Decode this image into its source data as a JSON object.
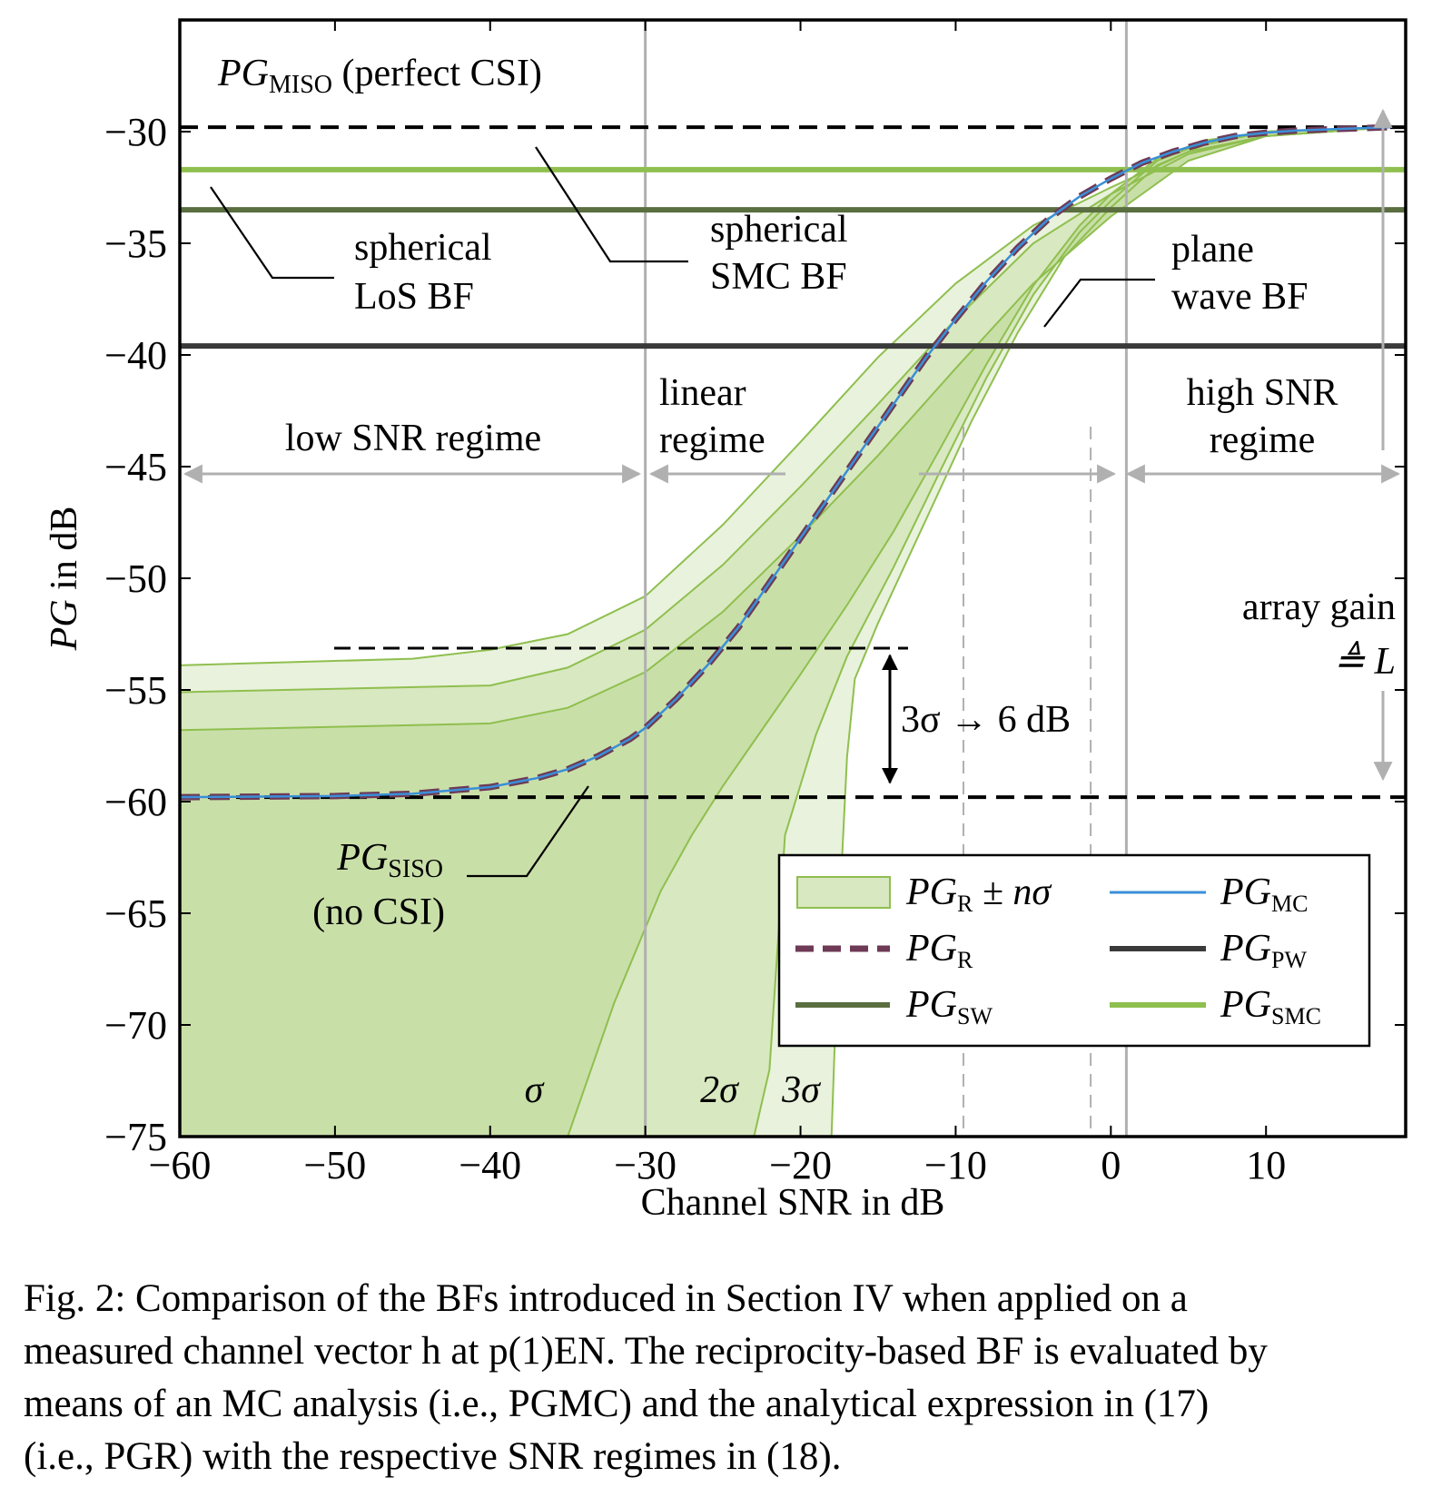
{
  "chart_data": {
    "type": "line",
    "xlabel": "Channel SNR in dB",
    "ylabel": "PG in dB",
    "xlim": [
      -60,
      19
    ],
    "ylim": [
      -75,
      -25
    ],
    "xticks": [
      -60,
      -50,
      -40,
      -30,
      -20,
      -10,
      0,
      10
    ],
    "xtick_labels": [
      "−60",
      "−50",
      "−40",
      "−30",
      "−20",
      "−10",
      "0",
      "10"
    ],
    "yticks": [
      -30,
      -35,
      -40,
      -45,
      -50,
      -55,
      -60,
      -65,
      -70,
      -75
    ],
    "ytick_labels": [
      "−30",
      "−35",
      "−40",
      "−45",
      "−50",
      "−55",
      "−60",
      "−65",
      "−70",
      "−75"
    ],
    "horizontal_lines": [
      {
        "name": "PG_MISO (perfect CSI)",
        "y": -29.8,
        "style": "dashed",
        "color": "#000000"
      },
      {
        "name": "PG_SMC",
        "y": -31.7,
        "style": "solid",
        "color": "#8fbf4f"
      },
      {
        "name": "PG_SW",
        "y": -33.5,
        "style": "solid",
        "color": "#5a6e40"
      },
      {
        "name": "PG_PW",
        "y": -39.6,
        "style": "solid",
        "color": "#3a3a3a"
      },
      {
        "name": "PG_SISO",
        "y": -59.8,
        "style": "dashed",
        "color": "#000000"
      }
    ],
    "regime_boundaries": [
      -30,
      1
    ],
    "dashed_verticals": [
      -9.5,
      -1.3
    ],
    "series": [
      {
        "name": "PG_R",
        "style": "dashed",
        "color": "#6e3a55",
        "x": [
          -60,
          -50,
          -45,
          -40,
          -37,
          -35,
          -33,
          -31,
          -30,
          -28,
          -26,
          -24,
          -22,
          -20,
          -18,
          -16,
          -14,
          -12,
          -10,
          -8,
          -6,
          -4,
          -2,
          0,
          2,
          4,
          6,
          8,
          10,
          12,
          14,
          16,
          18
        ],
        "y": [
          -59.8,
          -59.75,
          -59.65,
          -59.35,
          -58.95,
          -58.55,
          -57.95,
          -57.2,
          -56.7,
          -55.4,
          -53.9,
          -52.2,
          -50.2,
          -48.2,
          -46.2,
          -44.2,
          -42.2,
          -40.2,
          -38.4,
          -36.7,
          -35.2,
          -33.9,
          -32.9,
          -32.1,
          -31.4,
          -30.9,
          -30.5,
          -30.2,
          -30.05,
          -29.95,
          -29.9,
          -29.85,
          -29.8
        ]
      },
      {
        "name": "PG_MC",
        "style": "solid",
        "color": "#3a8fd8",
        "same_as": "PG_R"
      }
    ],
    "bands": [
      {
        "label": "σ",
        "n": 1,
        "upper_x": [
          -60,
          -40,
          -35,
          -30,
          -25,
          -20,
          -15,
          -10,
          -5,
          0,
          5,
          10,
          18
        ],
        "upper_y": [
          -56.8,
          -56.5,
          -55.8,
          -54.2,
          -51.5,
          -48.1,
          -44.5,
          -40.6,
          -36.8,
          -33.8,
          -31.3,
          -30.2,
          -29.8
        ],
        "lower_x": [
          -60,
          -40,
          -38,
          -35,
          -32,
          -29,
          -27,
          -25,
          -22,
          -20,
          -17,
          -14,
          -11,
          -8,
          -5,
          -2,
          0,
          3,
          6,
          10,
          18
        ],
        "lower_y": [
          -75,
          -75,
          -75,
          -75,
          -69,
          -64,
          -61.5,
          -59.3,
          -56.3,
          -54.3,
          -51.2,
          -47.9,
          -44.2,
          -40.4,
          -36.9,
          -34.2,
          -32.8,
          -31.2,
          -30.4,
          -30.0,
          -29.8
        ]
      },
      {
        "label": "2σ",
        "n": 2,
        "upper_x": [
          -60,
          -40,
          -35,
          -30,
          -25,
          -20,
          -15,
          -10,
          -5,
          0,
          5,
          10,
          18
        ],
        "upper_y": [
          -55.1,
          -54.8,
          -54.0,
          -52.3,
          -49.4,
          -45.9,
          -42.2,
          -38.4,
          -35.0,
          -32.8,
          -31.0,
          -30.2,
          -29.8
        ],
        "lower_x": [
          -60,
          -25,
          -23,
          -22,
          -21,
          -19,
          -17,
          -14,
          -11,
          -8,
          -5,
          -2,
          0,
          3,
          6,
          10,
          18
        ],
        "lower_y": [
          -75,
          -75,
          -75,
          -72,
          -61.5,
          -57,
          -53.5,
          -49.5,
          -45.2,
          -41.0,
          -37.3,
          -34.5,
          -33.1,
          -31.3,
          -30.5,
          -30.0,
          -29.8
        ]
      },
      {
        "label": "3σ",
        "n": 3,
        "upper_x": [
          -60,
          -45,
          -40,
          -35,
          -30,
          -25,
          -20,
          -15,
          -10,
          -5,
          0,
          5,
          10,
          18
        ],
        "upper_y": [
          -53.9,
          -53.6,
          -53.2,
          -52.5,
          -50.8,
          -47.6,
          -43.9,
          -40.1,
          -36.8,
          -34.2,
          -32.5,
          -30.9,
          -30.2,
          -29.8
        ],
        "lower_x": [
          -60,
          -19,
          -18,
          -17.5,
          -17,
          -16.5,
          -15,
          -12,
          -9,
          -6,
          -3,
          0,
          3,
          6,
          10,
          18
        ],
        "lower_y": [
          -75,
          -75,
          -75,
          -65,
          -58,
          -54.5,
          -52.0,
          -47.5,
          -43.0,
          -39.0,
          -35.6,
          -33.4,
          -31.5,
          -30.6,
          -30.0,
          -29.8
        ]
      }
    ],
    "band_colors": [
      "#c9dfa8",
      "#d8e8c0",
      "#e9f2dc"
    ],
    "band_edge_color": "#8fbf4f",
    "legend": {
      "placement": "lower-right",
      "entries": [
        {
          "label_main": "PG",
          "label_sub": "R",
          "label_suffix": " ± nσ",
          "kind": "band",
          "color": "#d8e8c0",
          "edge": "#8fbf4f"
        },
        {
          "label_main": "PG",
          "label_sub": "MC",
          "kind": "line",
          "color": "#3a8fd8",
          "style": "solid"
        },
        {
          "label_main": "PG",
          "label_sub": "R",
          "kind": "line",
          "color": "#6e3a55",
          "style": "dashed"
        },
        {
          "label_main": "PG",
          "label_sub": "PW",
          "kind": "line",
          "color": "#3a3a3a",
          "style": "solid"
        },
        {
          "label_main": "PG",
          "label_sub": "SW",
          "kind": "line",
          "color": "#5a6e40",
          "style": "solid"
        },
        {
          "label_main": "PG",
          "label_sub": "SMC",
          "kind": "line",
          "color": "#8fbf4f",
          "style": "solid"
        }
      ]
    },
    "annotations": {
      "miso_main": "PG",
      "miso_sub": "MISO",
      "miso_suffix": " (perfect CSI)",
      "los_line1": "spherical",
      "los_line2": "LoS BF",
      "smc_line1": "spherical",
      "smc_line2": "SMC BF",
      "pw_line1": "plane",
      "pw_line2": "wave BF",
      "low_regime": "low SNR regime",
      "linear_line1": "linear",
      "linear_line2": "regime",
      "high_line1": "high SNR",
      "high_line2": "regime",
      "array_gain_line1": "array gain",
      "array_gain_line2": "≜ L",
      "three_sigma": "3σ → 6 dB",
      "siso_main": "PG",
      "siso_sub": "SISO",
      "siso_line2": "(no CSI)",
      "sigma1": "σ",
      "sigma2": "2σ",
      "sigma3": "3σ"
    }
  },
  "caption": {
    "line1": "Fig. 2: Comparison of the BFs introduced in Section IV when applied on a",
    "line2": "measured channel vector h at p(1)EN. The reciprocity-based BF is evaluated by",
    "line3": "means of an MC analysis (i.e., PGMC) and the analytical expression in (17)",
    "line4": "(i.e., PGR) with the respective SNR regimes in (18)."
  }
}
